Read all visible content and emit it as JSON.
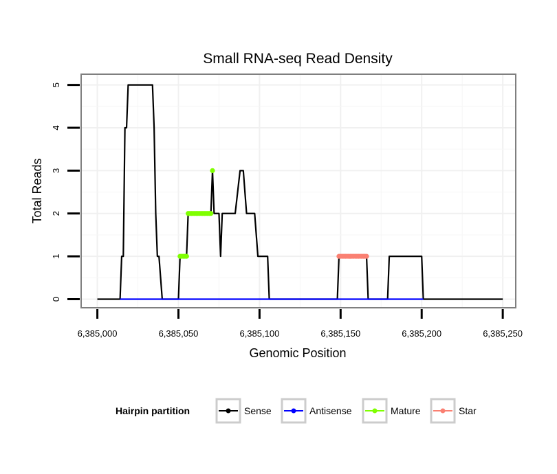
{
  "chart_data": {
    "type": "line",
    "title": "Small RNA-seq Read Density",
    "xlabel": "Genomic Position",
    "ylabel": "Total Reads",
    "xlim": [
      6384990,
      6385258
    ],
    "ylim": [
      -0.2,
      5.25
    ],
    "x_ticks": [
      6385000,
      6385050,
      6385100,
      6385150,
      6385200,
      6385250
    ],
    "x_tick_labels": [
      "6,385,000",
      "6,385,050",
      "6,385,100",
      "6,385,150",
      "6,385,200",
      "6,385,250"
    ],
    "y_ticks": [
      0,
      1,
      2,
      3,
      4,
      5
    ],
    "y_tick_labels": [
      "0",
      "1",
      "2",
      "3",
      "4",
      "5"
    ],
    "grid": true,
    "legend": {
      "title": "Hairpin partition",
      "position": "bottom",
      "entries": [
        {
          "label": "Sense",
          "color": "#000000"
        },
        {
          "label": "Antisense",
          "color": "#0000ff"
        },
        {
          "label": "Mature",
          "color": "#7fff00"
        },
        {
          "label": "Star",
          "color": "#fa8072"
        }
      ]
    },
    "series": [
      {
        "name": "Sense",
        "color": "#000000",
        "style": "line",
        "points": [
          [
            6385000,
            0
          ],
          [
            6385014,
            0
          ],
          [
            6385015,
            1
          ],
          [
            6385016,
            1
          ],
          [
            6385017,
            4
          ],
          [
            6385018,
            4
          ],
          [
            6385019,
            5
          ],
          [
            6385034,
            5
          ],
          [
            6385035,
            4
          ],
          [
            6385036,
            2
          ],
          [
            6385037,
            1
          ],
          [
            6385038,
            1
          ],
          [
            6385040,
            0
          ],
          [
            6385050,
            0
          ],
          [
            6385051,
            1
          ],
          [
            6385055,
            1
          ],
          [
            6385056,
            2
          ],
          [
            6385070,
            2
          ],
          [
            6385071,
            3
          ],
          [
            6385072,
            2
          ],
          [
            6385075,
            2
          ],
          [
            6385076,
            1
          ],
          [
            6385077,
            2
          ],
          [
            6385085,
            2
          ],
          [
            6385088,
            3
          ],
          [
            6385090,
            3
          ],
          [
            6385092,
            2
          ],
          [
            6385097,
            2
          ],
          [
            6385099,
            1
          ],
          [
            6385105,
            1
          ],
          [
            6385106,
            0
          ],
          [
            6385148,
            0
          ],
          [
            6385149,
            1
          ],
          [
            6385166,
            1
          ],
          [
            6385167,
            0
          ],
          [
            6385179,
            0
          ],
          [
            6385180,
            1
          ],
          [
            6385200,
            1
          ],
          [
            6385201,
            0
          ],
          [
            6385250,
            0
          ]
        ]
      },
      {
        "name": "Antisense",
        "color": "#0000ff",
        "style": "line",
        "points": [
          [
            6385014,
            0
          ],
          [
            6385106,
            0
          ],
          [
            6385149,
            0
          ],
          [
            6385167,
            0
          ],
          [
            6385180,
            0
          ],
          [
            6385201,
            0
          ]
        ]
      },
      {
        "name": "Mature",
        "color": "#7fff00",
        "style": "points",
        "points": [
          [
            6385051,
            1
          ],
          [
            6385052,
            1
          ],
          [
            6385053,
            1
          ],
          [
            6385054,
            1
          ],
          [
            6385055,
            1
          ],
          [
            6385056,
            2
          ],
          [
            6385057,
            2
          ],
          [
            6385058,
            2
          ],
          [
            6385059,
            2
          ],
          [
            6385060,
            2
          ],
          [
            6385061,
            2
          ],
          [
            6385062,
            2
          ],
          [
            6385063,
            2
          ],
          [
            6385064,
            2
          ],
          [
            6385065,
            2
          ],
          [
            6385066,
            2
          ],
          [
            6385067,
            2
          ],
          [
            6385068,
            2
          ],
          [
            6385069,
            2
          ],
          [
            6385070,
            2
          ],
          [
            6385071,
            3
          ]
        ]
      },
      {
        "name": "Star",
        "color": "#fa8072",
        "style": "points",
        "points": [
          [
            6385149,
            1
          ],
          [
            6385150,
            1
          ],
          [
            6385151,
            1
          ],
          [
            6385152,
            1
          ],
          [
            6385153,
            1
          ],
          [
            6385154,
            1
          ],
          [
            6385155,
            1
          ],
          [
            6385156,
            1
          ],
          [
            6385157,
            1
          ],
          [
            6385158,
            1
          ],
          [
            6385159,
            1
          ],
          [
            6385160,
            1
          ],
          [
            6385161,
            1
          ],
          [
            6385162,
            1
          ],
          [
            6385163,
            1
          ],
          [
            6385164,
            1
          ],
          [
            6385165,
            1
          ],
          [
            6385166,
            1
          ]
        ]
      }
    ]
  }
}
